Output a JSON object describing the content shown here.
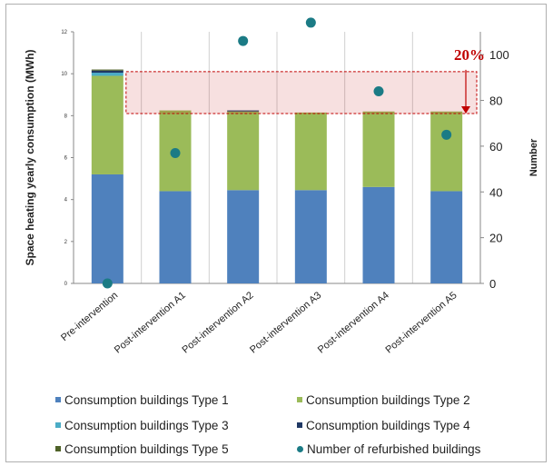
{
  "chart_data": {
    "type": "bar",
    "stacked": true,
    "ylabel": "Space heating yearly consumption (MWh)",
    "y2label": "Number",
    "ylim": [
      0,
      12
    ],
    "y_ticks": [
      0,
      2,
      4,
      6,
      8,
      10,
      12
    ],
    "y2lim": [
      0,
      110
    ],
    "y2_ticks": [
      0,
      20,
      40,
      60,
      80,
      100
    ],
    "grid": "vertical",
    "categories": [
      "Pre-intervention",
      "Post-intervention A1",
      "Post-intervention A2",
      "Post-intervention A3",
      "Post-intervention A4",
      "Post-intervention A5"
    ],
    "series": [
      {
        "name": "Consumption buildings Type 1",
        "color": "#4f81bd",
        "values": [
          5.2,
          4.4,
          4.45,
          4.45,
          4.6,
          4.4
        ]
      },
      {
        "name": "Consumption buildings Type 2",
        "color": "#9bbb59",
        "values": [
          4.7,
          3.85,
          3.75,
          3.7,
          3.6,
          3.8
        ]
      },
      {
        "name": "Consumption buildings Type 3",
        "color": "#4bacc6",
        "values": [
          0.15,
          0,
          0,
          0,
          0,
          0
        ]
      },
      {
        "name": "Consumption buildings Type 4",
        "color": "#1f3864",
        "values": [
          0.1,
          0,
          0.05,
          0,
          0,
          0
        ]
      },
      {
        "name": "Consumption buildings Type 5",
        "color": "#4f6228",
        "values": [
          0.05,
          0,
          0,
          0,
          0,
          0
        ]
      }
    ],
    "line_series": {
      "name": "Number of refurbished buildings",
      "axis": "right",
      "color": "#1b7b85",
      "values": [
        0,
        57,
        106,
        114,
        84,
        65
      ]
    },
    "annotation": {
      "text": "20%",
      "y_from": 10.1,
      "y_to": 8.1,
      "color": "#c00000"
    },
    "legend_position": "bottom"
  }
}
